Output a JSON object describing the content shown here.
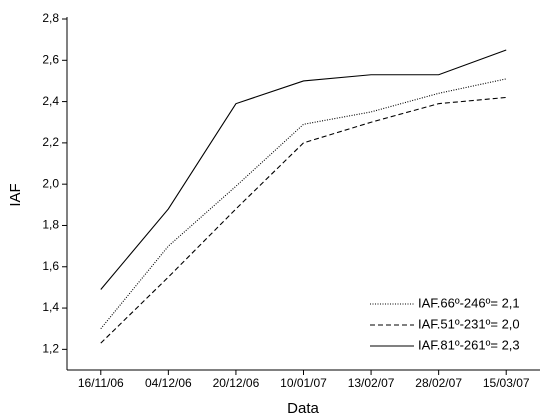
{
  "chart_data": {
    "type": "line",
    "x_label": "Data",
    "y_label": "IAF",
    "categories": [
      "16/11/06",
      "04/12/06",
      "20/12/06",
      "10/01/07",
      "13/02/07",
      "28/02/07",
      "15/03/07"
    ],
    "series": [
      {
        "name": "IAF.66º-246º= 2,1",
        "color": "#000000",
        "style": "dotted",
        "values": [
          1.3,
          1.7,
          1.99,
          2.29,
          2.35,
          2.44,
          2.51
        ]
      },
      {
        "name": "IAF.51º-231º= 2,0",
        "color": "#000000",
        "style": "dashed",
        "values": [
          1.23,
          1.55,
          1.88,
          2.2,
          2.3,
          2.39,
          2.42
        ]
      },
      {
        "name": "IAF.81º-261º= 2,3",
        "color": "#000000",
        "style": "solid",
        "values": [
          1.49,
          1.88,
          2.39,
          2.5,
          2.53,
          2.53,
          2.65
        ]
      }
    ],
    "ylim": [
      1.1,
      2.8
    ],
    "yticks": [
      {
        "value": 1.2,
        "label": "1,2"
      },
      {
        "value": 1.4,
        "label": "1,4"
      },
      {
        "value": 1.6,
        "label": "1,6"
      },
      {
        "value": 1.8,
        "label": "1,8"
      },
      {
        "value": 2.0,
        "label": "2,0"
      },
      {
        "value": 2.2,
        "label": "2,2"
      },
      {
        "value": 2.4,
        "label": "2,4"
      },
      {
        "value": 2.6,
        "label": "2,6"
      },
      {
        "value": 2.8,
        "label": "2,8"
      }
    ],
    "grid": false,
    "legend": "lower right"
  }
}
